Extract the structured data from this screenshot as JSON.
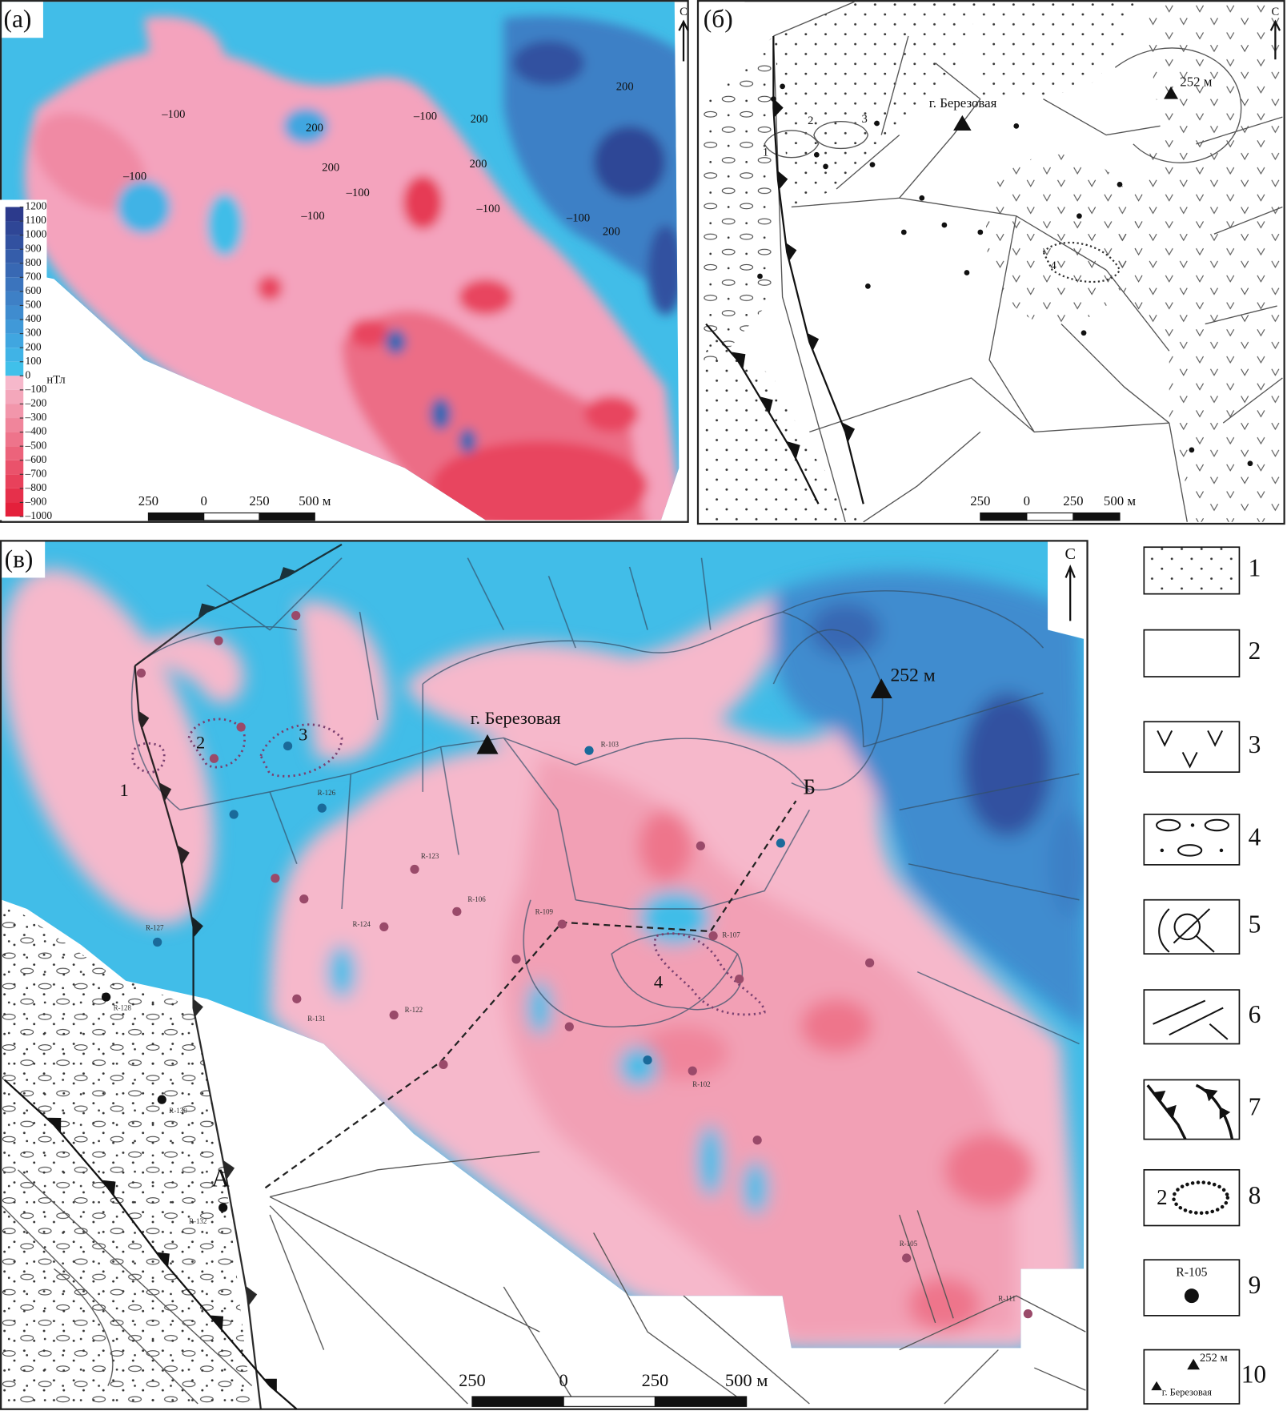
{
  "panel_a": {
    "label": "(а)",
    "north": "С",
    "colorbar": {
      "unit": "нТл",
      "ticks": [
        1200,
        1100,
        1000,
        900,
        800,
        700,
        600,
        500,
        400,
        300,
        200,
        100,
        0,
        {
          "value": -100,
          "label": "–100"
        },
        {
          "value": -200,
          "label": "–200"
        },
        {
          "value": -300,
          "label": "–300"
        },
        {
          "value": -400,
          "label": "–400"
        },
        {
          "value": -500,
          "label": "–500"
        },
        {
          "value": -600,
          "label": "–600"
        },
        {
          "value": -700,
          "label": "–700"
        },
        {
          "value": -800,
          "label": "–800"
        },
        {
          "value": -900,
          "label": "–900"
        },
        {
          "value": -1000,
          "label": "–1000"
        }
      ],
      "colors": [
        "#2c3a8c",
        "#2f4696",
        "#3251a0",
        "#355daa",
        "#3868b3",
        "#3b74bd",
        "#3e80c6",
        "#3f8ccf",
        "#4099d8",
        "#40a6e0",
        "#40b3e6",
        "#40c0ea",
        "#f6b8cb",
        "#f4a7bb",
        "#f296ab",
        "#f0859b",
        "#ee748b",
        "#ec637b",
        "#ea526b",
        "#e8415b",
        "#e6304b",
        "#e4203b"
      ]
    },
    "contour_labels": [
      "–100",
      "–100",
      "–100",
      "–100",
      "–100",
      "–100",
      "–100",
      "200",
      "200",
      "200",
      "200",
      "200",
      "200"
    ],
    "scale_bar": [
      "250",
      "0",
      "250",
      "500 м"
    ]
  },
  "panel_b": {
    "label": "(б)",
    "north": "С",
    "summit": "г. Березовая",
    "elevation": "252 м",
    "zones": [
      "1",
      "2",
      "3",
      "4"
    ],
    "scale_bar": [
      "250",
      "0",
      "250",
      "500 м"
    ]
  },
  "panel_c": {
    "label": "(в)",
    "north": "С",
    "summit": "г. Березовая",
    "elevation": "252 м",
    "zones": [
      "1",
      "2",
      "3",
      "4"
    ],
    "profile_ends": [
      "А",
      "Б"
    ],
    "wells": [
      "R-128",
      "R-130",
      "R-132",
      "R-126",
      "R-127",
      "R-124",
      "R-122",
      "R-131",
      "R-123",
      "R-106",
      "R-109",
      "R-103",
      "R-107",
      "R-102",
      "R-105",
      "R-111"
    ],
    "scale_bar": [
      "250",
      "0",
      "250",
      "500 м"
    ]
  },
  "legend": {
    "numbers": [
      "1",
      "2",
      "3",
      "4",
      "5",
      "6",
      "7",
      "8",
      "9",
      "10"
    ],
    "sample_zone": "2",
    "sample_well": "R-105",
    "sample_elevation": "252 м",
    "sample_summit": "г. Березовая"
  }
}
